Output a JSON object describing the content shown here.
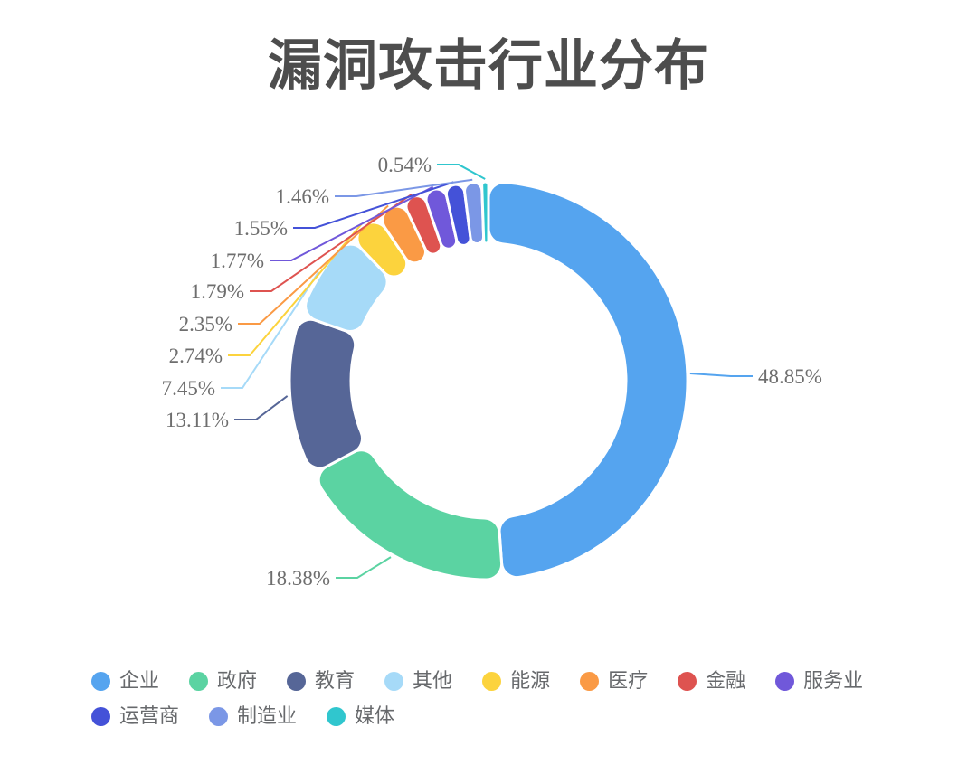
{
  "title": {
    "text": "漏洞攻击行业分布",
    "color": "#4d4d4d"
  },
  "chart_data": {
    "type": "pie",
    "subtype": "donut",
    "title": "漏洞攻击行业分布",
    "unit": "%",
    "clockwise": true,
    "start_angle": "top",
    "grid": false,
    "legend_position": "bottom-left",
    "label_color": "#6e6e6e",
    "slices": [
      {
        "name": "企业",
        "value": 48.85,
        "label": "48.85%",
        "color": "#55a4ef"
      },
      {
        "name": "政府",
        "value": 18.38,
        "label": "18.38%",
        "color": "#5bd3a2"
      },
      {
        "name": "教育",
        "value": 13.11,
        "label": "13.11%",
        "color": "#566697"
      },
      {
        "name": "其他",
        "value": 7.45,
        "label": "7.45%",
        "color": "#a6daf8"
      },
      {
        "name": "能源",
        "value": 2.74,
        "label": "2.74%",
        "color": "#fcd33d"
      },
      {
        "name": "医疗",
        "value": 2.35,
        "label": "2.35%",
        "color": "#fa9a45"
      },
      {
        "name": "金融",
        "value": 1.79,
        "label": "1.79%",
        "color": "#de5350"
      },
      {
        "name": "服务业",
        "value": 1.77,
        "label": "1.77%",
        "color": "#7058da"
      },
      {
        "name": "运营商",
        "value": 1.55,
        "label": "1.55%",
        "color": "#4452d8"
      },
      {
        "name": "制造业",
        "value": 1.46,
        "label": "1.46%",
        "color": "#7b97e6"
      },
      {
        "name": "媒体",
        "value": 0.54,
        "label": "0.54%",
        "color": "#30c6ce"
      }
    ]
  }
}
